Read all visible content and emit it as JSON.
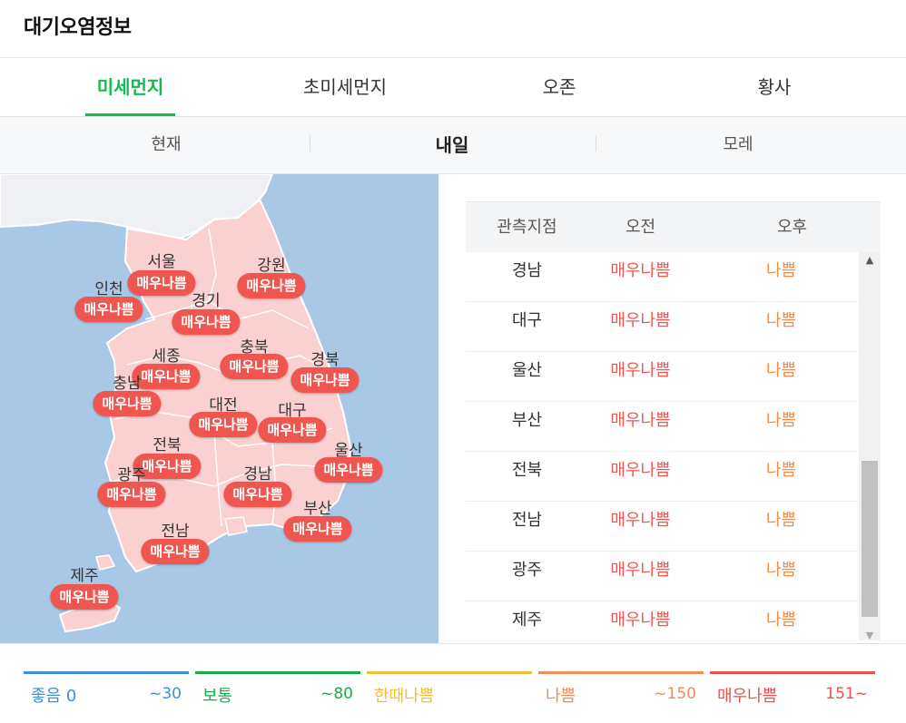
{
  "app": {
    "title": "대기오염정보"
  },
  "tabs": [
    {
      "label": "미세먼지",
      "active": true
    },
    {
      "label": "초미세먼지",
      "active": false
    },
    {
      "label": "오존",
      "active": false
    },
    {
      "label": "황사",
      "active": false
    }
  ],
  "subtabs": [
    {
      "label": "현재",
      "active": false
    },
    {
      "label": "내일",
      "active": true
    },
    {
      "label": "모레",
      "active": false
    }
  ],
  "map": {
    "regions": [
      {
        "name": "서울",
        "grade": "매우나쁨"
      },
      {
        "name": "강원",
        "grade": "매우나쁨"
      },
      {
        "name": "인천",
        "grade": "매우나쁨"
      },
      {
        "name": "경기",
        "grade": "매우나쁨"
      },
      {
        "name": "세종",
        "grade": "매우나쁨"
      },
      {
        "name": "충북",
        "grade": "매우나쁨"
      },
      {
        "name": "경북",
        "grade": "매우나쁨"
      },
      {
        "name": "충남",
        "grade": "매우나쁨"
      },
      {
        "name": "대전",
        "grade": "매우나쁨"
      },
      {
        "name": "대구",
        "grade": "매우나쁨"
      },
      {
        "name": "전북",
        "grade": "매우나쁨"
      },
      {
        "name": "울산",
        "grade": "매우나쁨"
      },
      {
        "name": "광주",
        "grade": "매우나쁨"
      },
      {
        "name": "경남",
        "grade": "매우나쁨"
      },
      {
        "name": "부산",
        "grade": "매우나쁨"
      },
      {
        "name": "전남",
        "grade": "매우나쁨"
      },
      {
        "name": "제주",
        "grade": "매우나쁨"
      }
    ]
  },
  "table": {
    "headers": {
      "station": "관측지점",
      "am": "오전",
      "pm": "오후"
    },
    "rows": [
      {
        "station": "경남",
        "am": "매우나쁨",
        "pm": "나쁨"
      },
      {
        "station": "대구",
        "am": "매우나쁨",
        "pm": "나쁨"
      },
      {
        "station": "울산",
        "am": "매우나쁨",
        "pm": "나쁨"
      },
      {
        "station": "부산",
        "am": "매우나쁨",
        "pm": "나쁨"
      },
      {
        "station": "전북",
        "am": "매우나쁨",
        "pm": "나쁨"
      },
      {
        "station": "전남",
        "am": "매우나쁨",
        "pm": "나쁨"
      },
      {
        "station": "광주",
        "am": "매우나쁨",
        "pm": "나쁨"
      },
      {
        "station": "제주",
        "am": "매우나쁨",
        "pm": "나쁨"
      }
    ]
  },
  "legend": [
    {
      "label": "좋음 0",
      "range": "~30",
      "color": "#3a8fe0"
    },
    {
      "label": "보통",
      "range": "~80",
      "color": "#1aab4a"
    },
    {
      "label": "한때나쁨",
      "range": "",
      "color": "#f2be3a"
    },
    {
      "label": "나쁨",
      "range": "~150",
      "color": "#f28c5a"
    },
    {
      "label": "매우나쁨",
      "range": "151~",
      "color": "#e9534e"
    }
  ],
  "colors": {
    "accent": "#0fbe50",
    "very_bad": "#f05650",
    "bad": "#f28c46",
    "land": "#fbd0d0",
    "sea": "#a9c8e6"
  }
}
